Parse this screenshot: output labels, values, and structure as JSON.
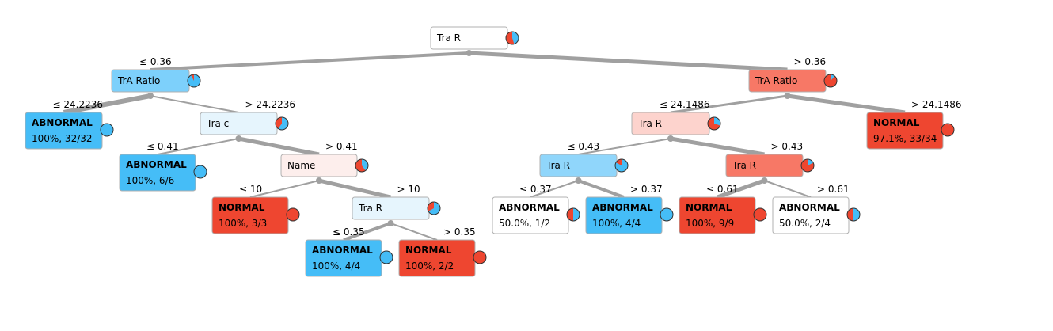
{
  "colors": {
    "abnormal": "#45bdf7",
    "normal": "#ee4630",
    "edge": "#a0a0a0",
    "box_stroke": "#b0b0b0"
  },
  "nodes": [
    {
      "id": "n0",
      "label": "Tra R",
      "fill": "#ffffff",
      "p_abnormal": 0.45
    },
    {
      "id": "n1",
      "edge_label": "≤ 0.36",
      "label": "TrA Ratio",
      "fill": "#7dd0fb",
      "p_abnormal": 0.92
    },
    {
      "id": "n2",
      "edge_label": "> 0.36",
      "label": "TrA Ratio",
      "fill": "#f77866",
      "p_abnormal": 0.12
    },
    {
      "id": "n3",
      "edge_label": "≤ 24.2236",
      "label": "ABNORMAL",
      "stats": "100%, 32/32",
      "fill": "#45bdf7",
      "p_abnormal": 1.0,
      "leaf": true
    },
    {
      "id": "n4",
      "edge_label": "> 24.2236",
      "label": "Tra c",
      "fill": "#e6f5fd",
      "p_abnormal": 0.6
    },
    {
      "id": "n5",
      "edge_label": "≤ 0.41",
      "label": "ABNORMAL",
      "stats": "100%, 6/6",
      "fill": "#45bdf7",
      "p_abnormal": 1.0,
      "leaf": true
    },
    {
      "id": "n6",
      "edge_label": "> 0.41",
      "label": "Name",
      "fill": "#fdeeec",
      "p_abnormal": 0.4
    },
    {
      "id": "n7",
      "edge_label": "≤ 10",
      "label": "NORMAL",
      "stats": "100%, 3/3",
      "fill": "#ee4630",
      "p_abnormal": 0.0,
      "leaf": true
    },
    {
      "id": "n8",
      "edge_label": "> 10",
      "label": "Tra R",
      "fill": "#e6f5fd",
      "p_abnormal": 0.67
    },
    {
      "id": "n9",
      "edge_label": "≤ 0.35",
      "label": "ABNORMAL",
      "stats": "100%, 4/4",
      "fill": "#45bdf7",
      "p_abnormal": 1.0,
      "leaf": true
    },
    {
      "id": "n10",
      "edge_label": "> 0.35",
      "label": "NORMAL",
      "stats": "100%, 2/2",
      "fill": "#ee4630",
      "p_abnormal": 0.0,
      "leaf": true
    },
    {
      "id": "n11",
      "edge_label": "≤ 24.1486",
      "label": "Tra R",
      "fill": "#fdd3cd",
      "p_abnormal": 0.3
    },
    {
      "id": "n12",
      "edge_label": "> 24.1486",
      "label": "NORMAL",
      "stats": "97.1%, 33/34",
      "fill": "#ee4630",
      "p_abnormal": 0.03,
      "leaf": true
    },
    {
      "id": "n13",
      "edge_label": "≤ 0.43",
      "label": "Tra R",
      "fill": "#90d6fb",
      "p_abnormal": 0.83
    },
    {
      "id": "n14",
      "edge_label": "> 0.43",
      "label": "Tra R",
      "fill": "#f77866",
      "p_abnormal": 0.18
    },
    {
      "id": "n15",
      "edge_label": "≤ 0.37",
      "label": "ABNORMAL",
      "stats": "50.0%, 1/2",
      "fill": "#ffffff",
      "p_abnormal": 0.5,
      "leaf": true
    },
    {
      "id": "n16",
      "edge_label": "> 0.37",
      "label": "ABNORMAL",
      "stats": "100%, 4/4",
      "fill": "#45bdf7",
      "p_abnormal": 1.0,
      "leaf": true
    },
    {
      "id": "n17",
      "edge_label": "≤ 0.61",
      "label": "NORMAL",
      "stats": "100%, 9/9",
      "fill": "#ee4630",
      "p_abnormal": 0.0,
      "leaf": true
    },
    {
      "id": "n18",
      "edge_label": "> 0.61",
      "label": "ABNORMAL",
      "stats": "50.0%, 2/4",
      "fill": "#ffffff",
      "p_abnormal": 0.5,
      "leaf": true
    }
  ]
}
